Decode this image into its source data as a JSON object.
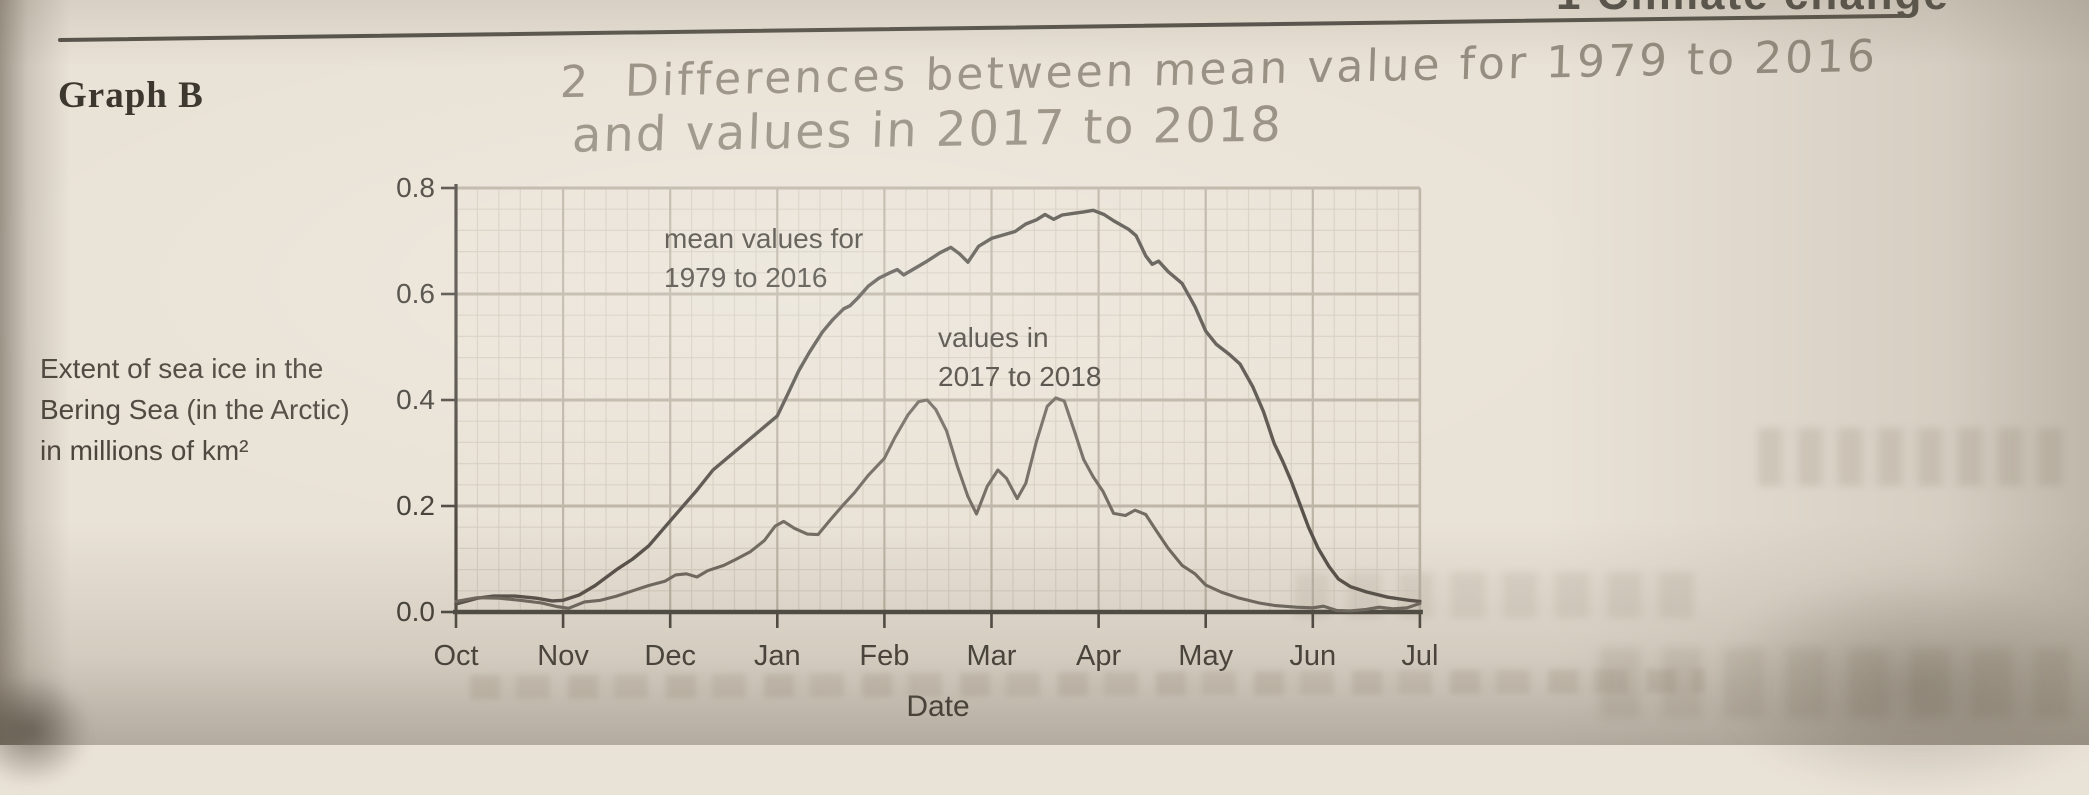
{
  "header": {
    "partial_top_text": "1 Climate change"
  },
  "graph_label": "Graph B",
  "handwriting": {
    "line1": "2  Differences between mean value for 1979 to 2016",
    "line2": "and values in 2017 to 2018"
  },
  "axis_label_lines": [
    "Extent of sea ice in the",
    "Bering Sea (in the Arctic)",
    "in millions of km²"
  ],
  "colors": {
    "paper": "#e9e2d6",
    "ink": "#45413a",
    "pencil": "#90887a",
    "axis": "#4f4b43",
    "grid_fine": "#d3ccbe",
    "grid_major": "#bcb4a5",
    "curve_mean": "#57524b",
    "curve_2017": "#6f6960"
  },
  "chart_data": {
    "type": "line",
    "title": "Graph B",
    "xlabel": "Date",
    "ylabel": "Extent of sea ice in the Bering Sea (in the Arctic) in millions of km²",
    "x_tick_labels": [
      "Oct",
      "Nov",
      "Dec",
      "Jan",
      "Feb",
      "Mar",
      "Apr",
      "May",
      "Jun",
      "Jul"
    ],
    "y_tick_labels": [
      "0.0",
      "0.2",
      "0.4",
      "0.6",
      "0.8"
    ],
    "ylim": [
      0.0,
      0.8
    ],
    "xlim_month_index": [
      0,
      9
    ],
    "grid": true,
    "grid_minor_per_month": 5,
    "grid_minor_value_step": 0.04,
    "annotations": [
      {
        "series": "mean",
        "lines": [
          "mean values for",
          "1979 to 2016"
        ]
      },
      {
        "series": "2017_2018",
        "lines": [
          "values in",
          "2017 to 2018"
        ]
      }
    ],
    "series": [
      {
        "name": "mean values for 1979 to 2016",
        "x": [
          0.0,
          0.2,
          0.35,
          0.55,
          0.75,
          0.9,
          1.0,
          1.15,
          1.3,
          1.5,
          1.65,
          1.8,
          1.95,
          2.1,
          2.25,
          2.4,
          2.6,
          2.8,
          3.0,
          3.1,
          3.2,
          3.3,
          3.42,
          3.52,
          3.62,
          3.68,
          3.75,
          3.85,
          3.95,
          4.05,
          4.12,
          4.18,
          4.28,
          4.4,
          4.52,
          4.62,
          4.7,
          4.78,
          4.88,
          5.0,
          5.12,
          5.22,
          5.32,
          5.42,
          5.5,
          5.58,
          5.66,
          5.76,
          5.86,
          5.95,
          6.05,
          6.15,
          6.28,
          6.35,
          6.44,
          6.5,
          6.56,
          6.65,
          6.78,
          6.9,
          7.0,
          7.1,
          7.22,
          7.32,
          7.44,
          7.54,
          7.64,
          7.72,
          7.8,
          7.86,
          7.96,
          8.05,
          8.15,
          8.24,
          8.35,
          8.5,
          8.7,
          8.9,
          9.0
        ],
        "values": [
          0.015,
          0.026,
          0.03,
          0.03,
          0.026,
          0.021,
          0.022,
          0.032,
          0.05,
          0.08,
          0.1,
          0.125,
          0.16,
          0.195,
          0.23,
          0.268,
          0.302,
          0.336,
          0.37,
          0.412,
          0.455,
          0.49,
          0.528,
          0.552,
          0.572,
          0.578,
          0.592,
          0.615,
          0.63,
          0.64,
          0.646,
          0.636,
          0.648,
          0.662,
          0.678,
          0.688,
          0.676,
          0.66,
          0.69,
          0.705,
          0.712,
          0.718,
          0.732,
          0.74,
          0.75,
          0.741,
          0.749,
          0.752,
          0.755,
          0.758,
          0.75,
          0.737,
          0.722,
          0.71,
          0.672,
          0.656,
          0.662,
          0.642,
          0.62,
          0.576,
          0.53,
          0.505,
          0.486,
          0.468,
          0.425,
          0.378,
          0.318,
          0.284,
          0.246,
          0.214,
          0.16,
          0.12,
          0.086,
          0.062,
          0.048,
          0.038,
          0.028,
          0.022,
          0.02
        ]
      },
      {
        "name": "values in 2017 to 2018",
        "x": [
          0.0,
          0.2,
          0.4,
          0.6,
          0.8,
          0.95,
          1.05,
          1.2,
          1.35,
          1.5,
          1.65,
          1.8,
          1.95,
          2.05,
          2.15,
          2.25,
          2.35,
          2.5,
          2.62,
          2.75,
          2.88,
          2.98,
          3.06,
          3.16,
          3.28,
          3.38,
          3.5,
          3.62,
          3.72,
          3.85,
          4.0,
          4.1,
          4.22,
          4.32,
          4.4,
          4.48,
          4.58,
          4.68,
          4.78,
          4.86,
          4.96,
          5.06,
          5.14,
          5.24,
          5.32,
          5.42,
          5.52,
          5.6,
          5.68,
          5.78,
          5.86,
          5.95,
          6.04,
          6.14,
          6.25,
          6.34,
          6.44,
          6.54,
          6.65,
          6.78,
          6.9,
          7.0,
          7.15,
          7.3,
          7.5,
          7.65,
          7.85,
          8.0,
          8.1,
          8.22,
          8.35,
          8.5,
          8.62,
          8.75,
          8.88,
          9.0
        ],
        "values": [
          0.02,
          0.027,
          0.026,
          0.022,
          0.017,
          0.01,
          0.007,
          0.019,
          0.022,
          0.03,
          0.04,
          0.05,
          0.058,
          0.07,
          0.072,
          0.066,
          0.078,
          0.088,
          0.1,
          0.114,
          0.135,
          0.162,
          0.171,
          0.158,
          0.147,
          0.146,
          0.175,
          0.203,
          0.225,
          0.258,
          0.29,
          0.33,
          0.372,
          0.397,
          0.4,
          0.382,
          0.342,
          0.276,
          0.218,
          0.185,
          0.237,
          0.268,
          0.252,
          0.214,
          0.243,
          0.322,
          0.388,
          0.404,
          0.398,
          0.338,
          0.288,
          0.255,
          0.228,
          0.186,
          0.182,
          0.192,
          0.184,
          0.153,
          0.12,
          0.088,
          0.072,
          0.051,
          0.037,
          0.027,
          0.017,
          0.012,
          0.009,
          0.008,
          0.011,
          0.003,
          0.002,
          0.005,
          0.009,
          0.006,
          0.008,
          0.016
        ]
      }
    ]
  }
}
